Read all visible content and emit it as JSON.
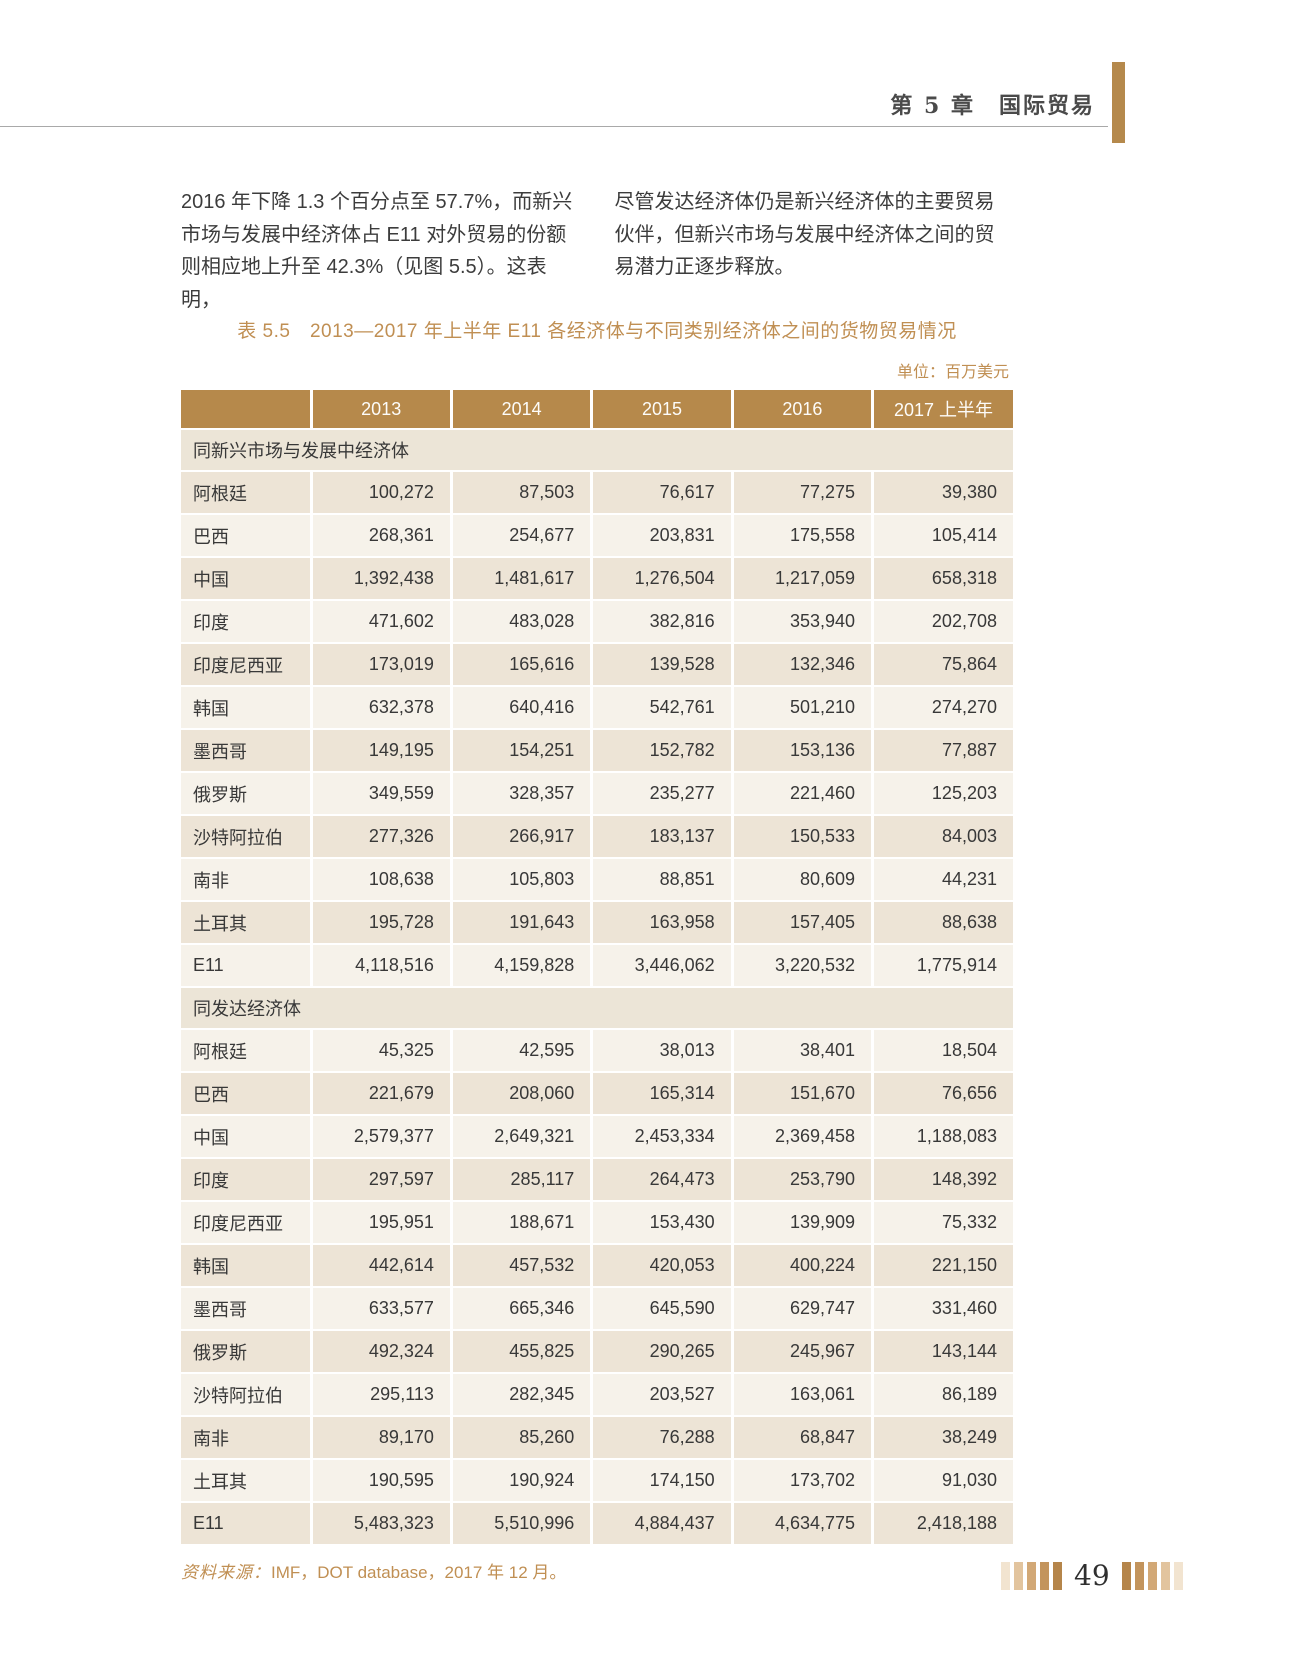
{
  "page": {
    "chapter_header": "第 5 章　国际贸易",
    "accent_color": "#b5894c"
  },
  "intro": {
    "left_lines": [
      "2016 年下降 1.3 个百分点至 57.7%，而新兴",
      "市场与发展中经济体占 E11 对外贸易的份额",
      "则相应地上升至 42.3%（见图 5.5）。这表明，"
    ],
    "right_lines": [
      "尽管发达经济体仍是新兴经济体的主要贸易",
      "伙伴，但新兴市场与发展中经济体之间的贸",
      "易潜力正逐步释放。"
    ]
  },
  "table": {
    "title": "表 5.5　2013—2017 年上半年 E11 各经济体与不同类别经济体之间的货物贸易情况",
    "unit_label": "单位：百万美元",
    "columns": [
      "",
      "2013",
      "2014",
      "2015",
      "2016",
      "2017 上半年"
    ],
    "header_bg": "#b6894b",
    "sections": [
      {
        "header": "同新兴市场与发展中经济体",
        "rows": [
          {
            "label": "阿根廷",
            "values": [
              "100,272",
              "87,503",
              "76,617",
              "77,275",
              "39,380"
            ]
          },
          {
            "label": "巴西",
            "values": [
              "268,361",
              "254,677",
              "203,831",
              "175,558",
              "105,414"
            ]
          },
          {
            "label": "中国",
            "values": [
              "1,392,438",
              "1,481,617",
              "1,276,504",
              "1,217,059",
              "658,318"
            ]
          },
          {
            "label": "印度",
            "values": [
              "471,602",
              "483,028",
              "382,816",
              "353,940",
              "202,708"
            ]
          },
          {
            "label": "印度尼西亚",
            "values": [
              "173,019",
              "165,616",
              "139,528",
              "132,346",
              "75,864"
            ]
          },
          {
            "label": "韩国",
            "values": [
              "632,378",
              "640,416",
              "542,761",
              "501,210",
              "274,270"
            ]
          },
          {
            "label": "墨西哥",
            "values": [
              "149,195",
              "154,251",
              "152,782",
              "153,136",
              "77,887"
            ]
          },
          {
            "label": "俄罗斯",
            "values": [
              "349,559",
              "328,357",
              "235,277",
              "221,460",
              "125,203"
            ]
          },
          {
            "label": "沙特阿拉伯",
            "values": [
              "277,326",
              "266,917",
              "183,137",
              "150,533",
              "84,003"
            ]
          },
          {
            "label": "南非",
            "values": [
              "108,638",
              "105,803",
              "88,851",
              "80,609",
              "44,231"
            ]
          },
          {
            "label": "土耳其",
            "values": [
              "195,728",
              "191,643",
              "163,958",
              "157,405",
              "88,638"
            ]
          },
          {
            "label": "E11",
            "values": [
              "4,118,516",
              "4,159,828",
              "3,446,062",
              "3,220,532",
              "1,775,914"
            ]
          }
        ]
      },
      {
        "header": "同发达经济体",
        "rows": [
          {
            "label": "阿根廷",
            "values": [
              "45,325",
              "42,595",
              "38,013",
              "38,401",
              "18,504"
            ]
          },
          {
            "label": "巴西",
            "values": [
              "221,679",
              "208,060",
              "165,314",
              "151,670",
              "76,656"
            ]
          },
          {
            "label": "中国",
            "values": [
              "2,579,377",
              "2,649,321",
              "2,453,334",
              "2,369,458",
              "1,188,083"
            ]
          },
          {
            "label": "印度",
            "values": [
              "297,597",
              "285,117",
              "264,473",
              "253,790",
              "148,392"
            ]
          },
          {
            "label": "印度尼西亚",
            "values": [
              "195,951",
              "188,671",
              "153,430",
              "139,909",
              "75,332"
            ]
          },
          {
            "label": "韩国",
            "values": [
              "442,614",
              "457,532",
              "420,053",
              "400,224",
              "221,150"
            ]
          },
          {
            "label": "墨西哥",
            "values": [
              "633,577",
              "665,346",
              "645,590",
              "629,747",
              "331,460"
            ]
          },
          {
            "label": "俄罗斯",
            "values": [
              "492,324",
              "455,825",
              "290,265",
              "245,967",
              "143,144"
            ]
          },
          {
            "label": "沙特阿拉伯",
            "values": [
              "295,113",
              "282,345",
              "203,527",
              "163,061",
              "86,189"
            ]
          },
          {
            "label": "南非",
            "values": [
              "89,170",
              "85,260",
              "76,288",
              "68,847",
              "38,249"
            ]
          },
          {
            "label": "土耳其",
            "values": [
              "190,595",
              "190,924",
              "174,150",
              "173,702",
              "91,030"
            ]
          },
          {
            "label": "E11",
            "values": [
              "5,483,323",
              "5,510,996",
              "4,884,437",
              "4,634,775",
              "2,418,188"
            ]
          }
        ]
      }
    ],
    "source_label": "资料来源：",
    "source_text": "IMF，DOT database，2017 年 12 月。"
  },
  "footer": {
    "page_number": "49",
    "bar_colors": [
      "#f2e4d0",
      "#e2c49e",
      "#d2a876",
      "#c3945c",
      "#b5854a"
    ]
  }
}
